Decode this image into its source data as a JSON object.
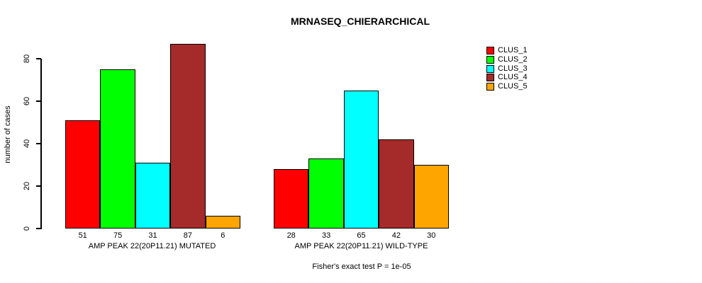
{
  "window": {
    "background": "#FFFFFF",
    "text_color": "#000000"
  },
  "chart_data": {
    "type": "bar",
    "title": "MRNASEQ_CHIERARCHICAL",
    "ylabel": "number of cases",
    "xlabel": "",
    "annotation": "Fisher's exact test P = 1e-05",
    "ylim": [
      0,
      80
    ],
    "yticks": [
      0,
      20,
      40,
      60,
      80
    ],
    "grid": false,
    "legend_position": "right",
    "bar_value_labels_shown": true,
    "categories": [
      "AMP PEAK 22(20P11.21) MUTATED",
      "AMP PEAK 22(20P11.21) WILD-TYPE"
    ],
    "series": [
      {
        "name": "CLUS_1",
        "color": "#FF0000",
        "values": [
          51,
          28
        ]
      },
      {
        "name": "CLUS_2",
        "color": "#00FF00",
        "values": [
          75,
          33
        ]
      },
      {
        "name": "CLUS_3",
        "color": "#00FFFF",
        "values": [
          31,
          65
        ]
      },
      {
        "name": "CLUS_4",
        "color": "#A52A2A",
        "values": [
          87,
          42
        ]
      },
      {
        "name": "CLUS_5",
        "color": "#FFA500",
        "values": [
          6,
          30
        ]
      }
    ]
  }
}
